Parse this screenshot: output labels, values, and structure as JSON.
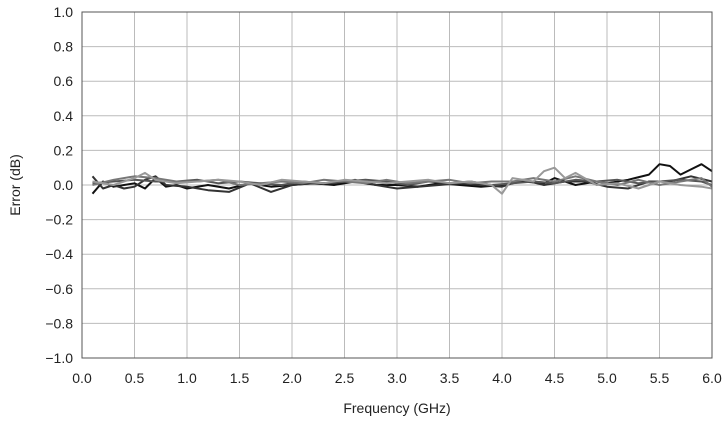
{
  "chart_data": {
    "type": "line",
    "xlabel": "Frequency (GHz)",
    "ylabel": "Error (dB)",
    "xlim": [
      0.0,
      6.0
    ],
    "ylim": [
      -1.0,
      1.0
    ],
    "x_ticks": [
      "0.0",
      "0.5",
      "1.0",
      "1.5",
      "2.0",
      "2.5",
      "3.0",
      "3.5",
      "4.0",
      "4.5",
      "5.0",
      "5.5",
      "6.0"
    ],
    "y_ticks": [
      "1.0",
      "0.8",
      "0.6",
      "0.4",
      "0.2",
      "0.0",
      "−0.2",
      "−0.4",
      "−0.6",
      "−0.8",
      "−1.0"
    ],
    "grid": true,
    "legend": "none",
    "series": [
      {
        "color": "#111111",
        "x": [
          0.1,
          0.2,
          0.3,
          0.4,
          0.5,
          0.6,
          0.7,
          0.8,
          0.9,
          1.0,
          1.2,
          1.4,
          1.6,
          1.8,
          2.0,
          2.2,
          2.4,
          2.6,
          2.8,
          3.0,
          3.2,
          3.4,
          3.6,
          3.8,
          4.0,
          4.2,
          4.4,
          4.5,
          4.7,
          4.9,
          5.0,
          5.2,
          5.4,
          5.5,
          5.6,
          5.7,
          5.8,
          5.9,
          6.0
        ],
        "y": [
          -0.05,
          0.02,
          -0.01,
          0.0,
          0.01,
          -0.02,
          0.04,
          -0.01,
          0.0,
          -0.02,
          0.0,
          -0.02,
          0.01,
          -0.01,
          0.0,
          0.01,
          0.0,
          0.02,
          0.0,
          0.0,
          -0.01,
          0.01,
          0.0,
          -0.01,
          0.0,
          0.02,
          0.01,
          0.04,
          0.0,
          0.02,
          0.01,
          0.03,
          0.06,
          0.12,
          0.11,
          0.06,
          0.09,
          0.12,
          0.08
        ]
      },
      {
        "color": "#333333",
        "x": [
          0.1,
          0.2,
          0.3,
          0.4,
          0.5,
          0.6,
          0.7,
          0.8,
          1.0,
          1.2,
          1.4,
          1.6,
          1.8,
          2.0,
          2.2,
          2.4,
          2.6,
          2.8,
          3.0,
          3.2,
          3.4,
          3.6,
          3.8,
          4.0,
          4.2,
          4.4,
          4.6,
          4.8,
          5.0,
          5.2,
          5.4,
          5.6,
          5.8,
          6.0
        ],
        "y": [
          0.05,
          -0.02,
          0.0,
          -0.02,
          -0.01,
          0.03,
          0.05,
          0.0,
          -0.01,
          -0.03,
          -0.04,
          0.01,
          -0.04,
          0.0,
          0.01,
          0.01,
          0.03,
          0.0,
          -0.02,
          -0.01,
          0.0,
          0.01,
          0.0,
          -0.01,
          0.03,
          0.0,
          0.02,
          0.02,
          -0.01,
          -0.02,
          0.02,
          0.02,
          0.05,
          0.02
        ]
      },
      {
        "color": "#555555",
        "x": [
          0.1,
          0.3,
          0.5,
          0.7,
          0.9,
          1.1,
          1.3,
          1.5,
          1.7,
          1.9,
          2.1,
          2.3,
          2.5,
          2.7,
          2.9,
          3.1,
          3.3,
          3.5,
          3.7,
          3.9,
          4.1,
          4.3,
          4.5,
          4.7,
          4.9,
          5.1,
          5.3,
          5.5,
          5.7,
          5.9,
          6.0
        ],
        "y": [
          0.01,
          0.02,
          0.03,
          0.02,
          0.02,
          0.03,
          0.01,
          0.02,
          0.01,
          0.0,
          0.02,
          0.01,
          0.02,
          0.03,
          0.02,
          0.0,
          0.02,
          0.01,
          0.02,
          0.0,
          0.01,
          0.02,
          0.01,
          0.03,
          0.02,
          0.03,
          0.01,
          0.02,
          0.03,
          0.02,
          0.0
        ]
      },
      {
        "color": "#777777",
        "x": [
          0.1,
          0.3,
          0.5,
          0.7,
          0.9,
          1.1,
          1.3,
          1.5,
          1.7,
          1.9,
          2.1,
          2.3,
          2.5,
          2.7,
          2.9,
          3.1,
          3.3,
          3.5,
          3.7,
          3.9,
          4.1,
          4.3,
          4.5,
          4.7,
          4.9,
          5.1,
          5.3,
          5.5,
          5.7,
          5.9,
          6.0
        ],
        "y": [
          0.0,
          0.03,
          0.05,
          0.04,
          0.02,
          0.02,
          0.03,
          0.0,
          0.01,
          0.02,
          0.01,
          0.03,
          0.02,
          0.01,
          0.03,
          0.01,
          0.02,
          0.03,
          0.01,
          0.02,
          0.02,
          0.04,
          0.02,
          0.05,
          0.02,
          0.0,
          0.03,
          0.0,
          0.02,
          0.04,
          -0.01
        ]
      },
      {
        "color": "#999999",
        "x": [
          0.1,
          0.3,
          0.5,
          0.6,
          0.7,
          0.9,
          1.1,
          1.3,
          1.5,
          1.7,
          1.9,
          2.1,
          2.3,
          2.5,
          2.7,
          2.9,
          3.1,
          3.3,
          3.5,
          3.7,
          3.9,
          4.0,
          4.1,
          4.3,
          4.4,
          4.5,
          4.6,
          4.7,
          4.9,
          5.1,
          5.3,
          5.5,
          5.7,
          5.9,
          6.0
        ],
        "y": [
          0.02,
          0.0,
          0.04,
          0.07,
          0.03,
          0.01,
          0.02,
          0.03,
          0.02,
          0.0,
          0.03,
          0.02,
          0.01,
          0.03,
          0.02,
          0.01,
          0.02,
          0.03,
          0.01,
          0.02,
          0.0,
          -0.05,
          0.04,
          0.02,
          0.08,
          0.1,
          0.04,
          0.07,
          0.0,
          0.01,
          -0.02,
          0.02,
          0.0,
          -0.01,
          -0.02
        ]
      }
    ]
  }
}
